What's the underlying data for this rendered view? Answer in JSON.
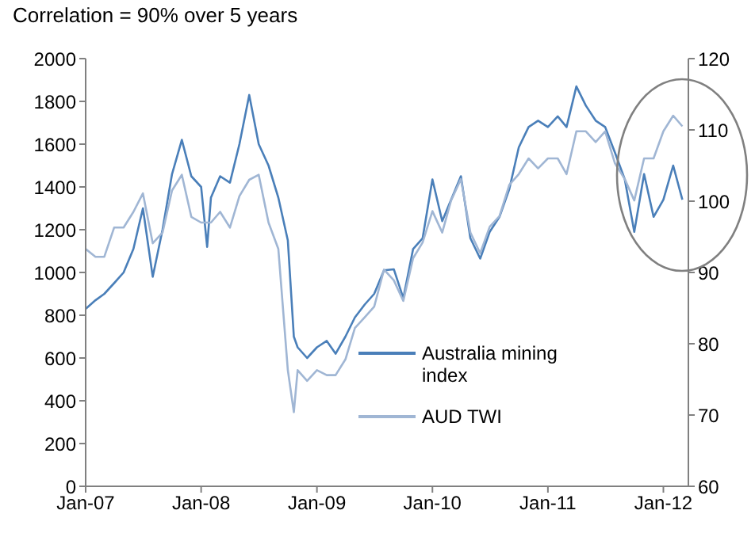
{
  "chart_data": {
    "type": "line",
    "title": "Correlation = 90% over 5 years",
    "xlim": [
      "2007-01",
      "2012-03-20"
    ],
    "xticks": [
      {
        "value": "2007-01",
        "label": "Jan-07"
      },
      {
        "value": "2008-01",
        "label": "Jan-08"
      },
      {
        "value": "2009-01",
        "label": "Jan-09"
      },
      {
        "value": "2010-01",
        "label": "Jan-10"
      },
      {
        "value": "2011-01",
        "label": "Jan-11"
      },
      {
        "value": "2012-01",
        "label": "Jan-12"
      }
    ],
    "ylim": [
      0,
      2000
    ],
    "yticks": [
      0,
      200,
      400,
      600,
      800,
      1000,
      1200,
      1400,
      1600,
      1800,
      2000
    ],
    "y2lim": [
      60,
      120
    ],
    "y2ticks": [
      60,
      70,
      80,
      90,
      100,
      110,
      120
    ],
    "legend": "right",
    "marker": "none",
    "line_style": "solid",
    "series": [
      {
        "name": "Australia mining index",
        "color": "#4a7fb9",
        "x": [
          "2007-01",
          "2007-02",
          "2007-03",
          "2007-04",
          "2007-05",
          "2007-06",
          "2007-07",
          "2007-08",
          "2007-09",
          "2007-10",
          "2007-11",
          "2007-12",
          "2008-01",
          "2008-01-20",
          "2008-02",
          "2008-03",
          "2008-04",
          "2008-05",
          "2008-06",
          "2008-07",
          "2008-08",
          "2008-09",
          "2008-10",
          "2008-10-20",
          "2008-11",
          "2008-12",
          "2009-01",
          "2009-02",
          "2009-03",
          "2009-04",
          "2009-05",
          "2009-06",
          "2009-07",
          "2009-08",
          "2009-09",
          "2009-10",
          "2009-11",
          "2009-12",
          "2010-01",
          "2010-02",
          "2010-03",
          "2010-04",
          "2010-05",
          "2010-06",
          "2010-07",
          "2010-08",
          "2010-09",
          "2010-10",
          "2010-11",
          "2010-12",
          "2011-01",
          "2011-02",
          "2011-03",
          "2011-04",
          "2011-05",
          "2011-06",
          "2011-07",
          "2011-08",
          "2011-09",
          "2011-10",
          "2011-11",
          "2011-12",
          "2012-01",
          "2012-02",
          "2012-03"
        ],
        "values": [
          830,
          870,
          900,
          950,
          1000,
          1110,
          1300,
          980,
          1200,
          1460,
          1620,
          1450,
          1400,
          1120,
          1350,
          1450,
          1420,
          1600,
          1830,
          1600,
          1500,
          1350,
          1150,
          700,
          650,
          600,
          650,
          680,
          620,
          700,
          790,
          850,
          900,
          1010,
          1015,
          880,
          1110,
          1160,
          1435,
          1240,
          1340,
          1450,
          1160,
          1065,
          1190,
          1260,
          1390,
          1585,
          1680,
          1710,
          1680,
          1730,
          1680,
          1870,
          1780,
          1710,
          1680,
          1560,
          1435,
          1190,
          1460,
          1260,
          1340,
          1500,
          1340
        ]
      },
      {
        "name": "AUD TWI",
        "color": "#a0b6d4",
        "axis": "y2",
        "x": [
          "2007-01",
          "2007-02",
          "2007-03",
          "2007-04",
          "2007-05",
          "2007-06",
          "2007-07",
          "2007-08",
          "2007-09",
          "2007-10",
          "2007-11",
          "2007-12",
          "2008-01",
          "2008-02",
          "2008-03",
          "2008-04",
          "2008-05",
          "2008-06",
          "2008-07",
          "2008-08",
          "2008-09",
          "2008-10",
          "2008-10-20",
          "2008-11",
          "2008-12",
          "2009-01",
          "2009-02",
          "2009-03",
          "2009-04",
          "2009-05",
          "2009-06",
          "2009-07",
          "2009-08",
          "2009-09",
          "2009-10",
          "2009-11",
          "2009-12",
          "2010-01",
          "2010-02",
          "2010-03",
          "2010-04",
          "2010-05",
          "2010-06",
          "2010-07",
          "2010-08",
          "2010-09",
          "2010-10",
          "2010-11",
          "2010-12",
          "2011-01",
          "2011-02",
          "2011-03",
          "2011-04",
          "2011-05",
          "2011-06",
          "2011-07",
          "2011-08",
          "2011-09",
          "2011-10",
          "2011-11",
          "2011-12",
          "2012-01",
          "2012-02",
          "2012-03"
        ],
        "values": [
          93.3,
          92.2,
          92.2,
          96.3,
          96.3,
          98.5,
          101.1,
          94.1,
          95.6,
          101.5,
          103.7,
          97.8,
          97,
          97,
          98.5,
          96.3,
          100.7,
          103,
          103.7,
          97,
          93.3,
          76.3,
          70.4,
          76.3,
          74.8,
          76.3,
          75.6,
          75.6,
          77.8,
          82.2,
          83.7,
          85.2,
          90.4,
          88.9,
          86,
          92,
          94.2,
          98.6,
          95.6,
          100.1,
          103.1,
          95.6,
          92.7,
          96.4,
          97.9,
          102.3,
          103.8,
          106,
          104.6,
          106,
          106,
          103.8,
          109.8,
          109.8,
          108.3,
          109.8,
          105.3,
          103.1,
          100.1,
          106,
          106,
          109.8,
          112,
          110.5
        ]
      }
    ]
  }
}
